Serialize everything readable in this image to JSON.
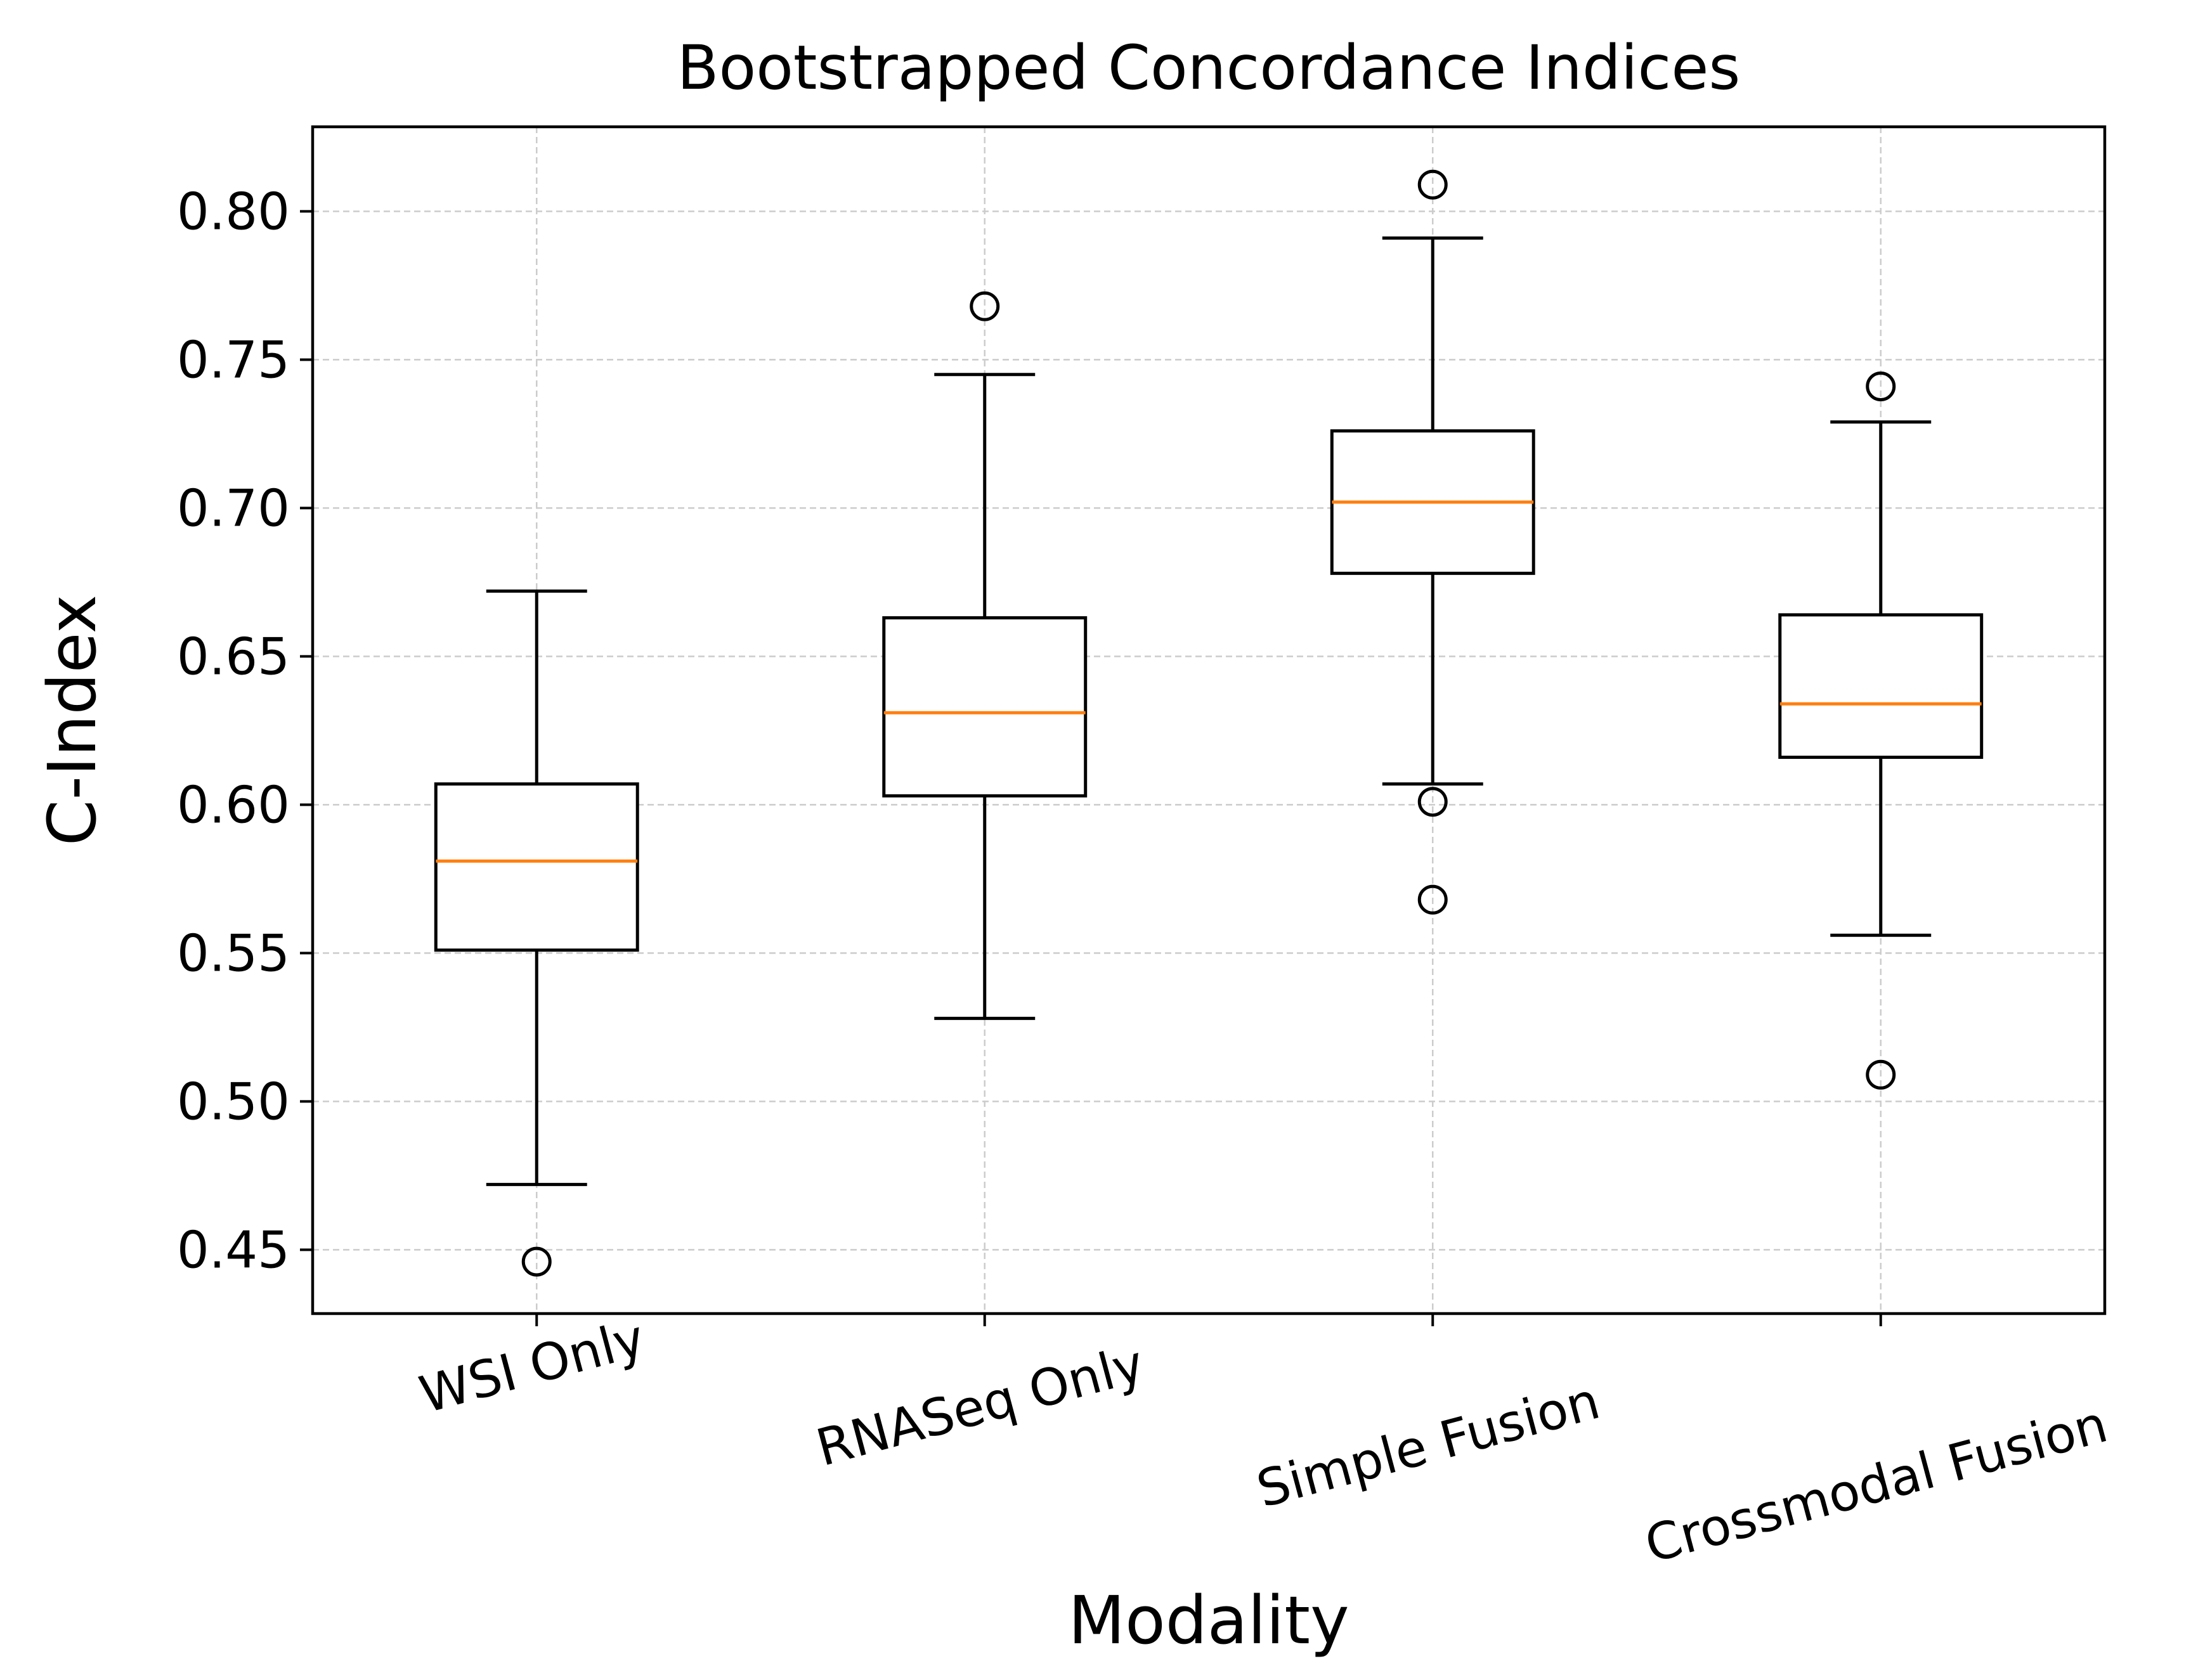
{
  "chart_data": {
    "type": "boxplot",
    "title": "Bootstrapped Concordance Indices",
    "xlabel": "Modality",
    "ylabel": "C-Index",
    "ylim": [
      0.4285,
      0.8285
    ],
    "yticks": [
      0.45,
      0.5,
      0.55,
      0.6,
      0.65,
      0.7,
      0.75,
      0.8
    ],
    "ytick_labels": [
      "0.45",
      "0.50",
      "0.55",
      "0.60",
      "0.65",
      "0.70",
      "0.75",
      "0.80"
    ],
    "xtick_rotation_deg": 15,
    "grid": true,
    "colors": {
      "box": "#000000",
      "median": "#ff7f0e",
      "grid": "#cccccc",
      "frame": "#000000"
    },
    "categories": [
      "WSI Only",
      "RNASeq Only",
      "Simple Fusion",
      "Crossmodal Fusion"
    ],
    "boxes": [
      {
        "category": "WSI Only",
        "whisker_low": 0.472,
        "q1": 0.551,
        "median": 0.581,
        "q3": 0.607,
        "whisker_high": 0.672,
        "outliers": [
          0.446
        ]
      },
      {
        "category": "RNASeq Only",
        "whisker_low": 0.528,
        "q1": 0.603,
        "median": 0.631,
        "q3": 0.663,
        "whisker_high": 0.745,
        "outliers": [
          0.768
        ]
      },
      {
        "category": "Simple Fusion",
        "whisker_low": 0.607,
        "q1": 0.678,
        "median": 0.702,
        "q3": 0.726,
        "whisker_high": 0.791,
        "outliers": [
          0.601,
          0.568,
          0.809
        ]
      },
      {
        "category": "Crossmodal Fusion",
        "whisker_low": 0.556,
        "q1": 0.616,
        "median": 0.634,
        "q3": 0.664,
        "whisker_high": 0.729,
        "outliers": [
          0.509,
          0.741
        ]
      }
    ]
  }
}
